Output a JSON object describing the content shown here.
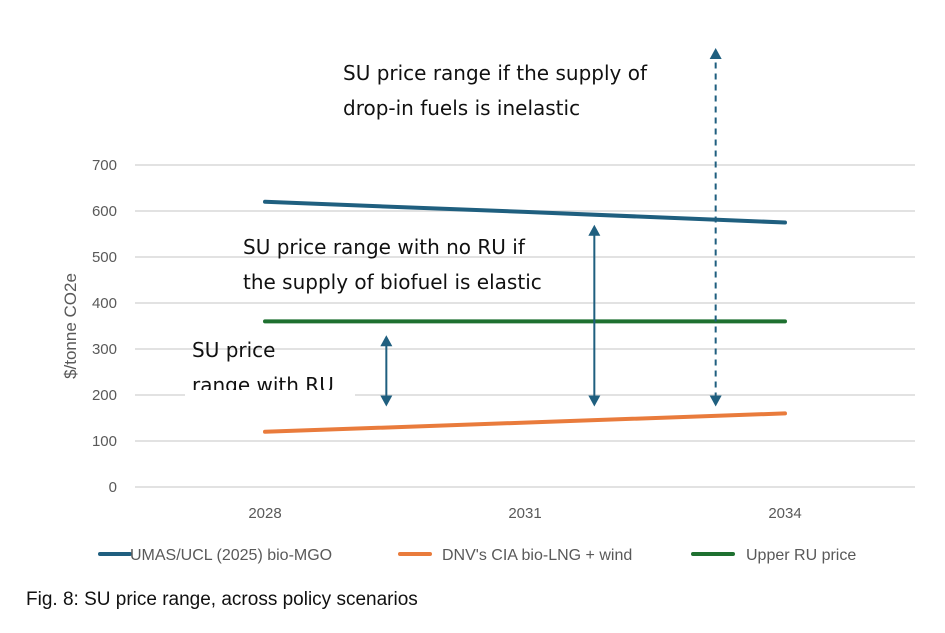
{
  "chart_data": {
    "type": "line",
    "title": "",
    "xlabel": "",
    "ylabel": "$/tonne CO2e",
    "categories": [
      "2028",
      "2031",
      "2034"
    ],
    "x": [
      2028,
      2031,
      2034
    ],
    "ylim": [
      0,
      700
    ],
    "yticks": [
      0,
      100,
      200,
      300,
      400,
      500,
      600,
      700
    ],
    "grid": true,
    "legend_position": "bottom",
    "series": [
      {
        "name": "UMAS/UCL (2025) bio-MGO",
        "color": "#1f5f7f",
        "values": [
          620,
          598,
          575
        ]
      },
      {
        "name": "DNV's CIA bio-LNG + wind",
        "color": "#e97b3c",
        "values": [
          120,
          140,
          160
        ]
      },
      {
        "name": "Upper RU price",
        "color": "#1e7030",
        "values": [
          360,
          360,
          360
        ]
      }
    ],
    "annotations": [
      {
        "lines": [
          "SU price",
          "range with RU"
        ],
        "arrow": {
          "x": 2029.4,
          "from": 175,
          "to": 330,
          "style": "solid"
        }
      },
      {
        "lines": [
          "SU price range with no RU if",
          "the supply of biofuel is elastic"
        ],
        "arrow": {
          "x": 2031.8,
          "from": 175,
          "to": 570,
          "style": "solid"
        }
      },
      {
        "lines": [
          "SU price range if the supply of",
          "drop-in fuels is inelastic"
        ],
        "arrow": {
          "x": 2033.2,
          "from": 175,
          "to": 960,
          "style": "dashed"
        }
      }
    ],
    "arrow_color": "#1f5f7f"
  },
  "caption": "Fig. 8: SU price range, across policy scenarios"
}
